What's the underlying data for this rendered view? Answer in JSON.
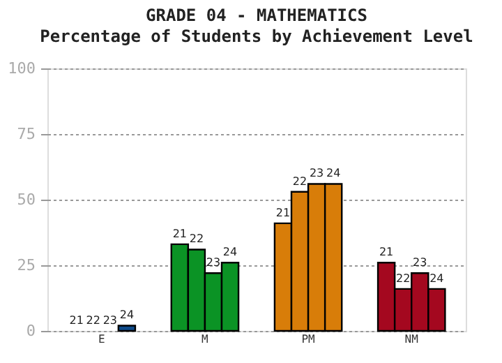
{
  "chart_data": {
    "type": "bar",
    "title": "GRADE 04 - MATHEMATICS",
    "subtitle": "Percentage of Students by Achievement Level",
    "categories": [
      "E",
      "M",
      "PM",
      "NM"
    ],
    "series": [
      {
        "name": "21",
        "colors": [
          "#0e4a8a",
          "#0b9325",
          "#d87d09",
          "#a4081f"
        ],
        "values": [
          0,
          33,
          41,
          26
        ]
      },
      {
        "name": "22",
        "colors": [
          "#0e4a8a",
          "#0b9325",
          "#d87d09",
          "#a4081f"
        ],
        "values": [
          0,
          31,
          53,
          16
        ]
      },
      {
        "name": "23",
        "colors": [
          "#0e4a8a",
          "#0b9325",
          "#d87d09",
          "#a4081f"
        ],
        "values": [
          0,
          22,
          56,
          22
        ]
      },
      {
        "name": "24",
        "colors": [
          "#0e4a8a",
          "#0b9325",
          "#d87d09",
          "#a4081f"
        ],
        "values": [
          2,
          26,
          56,
          16
        ]
      }
    ],
    "ylim": [
      0,
      100
    ],
    "yticks": [
      0,
      25,
      50,
      75,
      100
    ],
    "grid": "y"
  }
}
